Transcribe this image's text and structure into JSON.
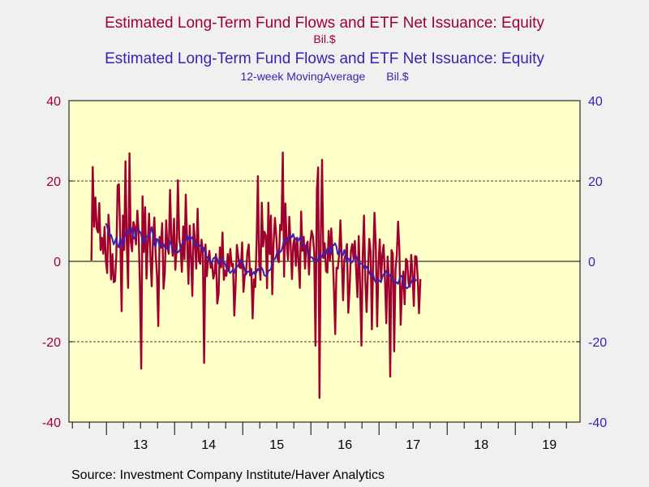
{
  "chart_data": {
    "type": "line",
    "titles": [
      {
        "text": "Estimated Long-Term Fund Flows and ETF Net Issuance: Equity",
        "color": "#a00030"
      },
      {
        "text": "Bil.$",
        "color": "#a00030"
      },
      {
        "text": "Estimated Long-Term Fund Flows and ETF Net Issuance: Equity",
        "color": "#3a1fb0"
      },
      {
        "text": "12-week MovingAverage",
        "color": "#3a1fb0"
      },
      {
        "text": "Bil.$",
        "color": "#3a1fb0"
      }
    ],
    "ylim": [
      -40,
      40
    ],
    "yticks_left": [
      "40",
      "20",
      "0",
      "-20",
      "-40"
    ],
    "yticks_right": [
      "40",
      "20",
      "0",
      "-20",
      "-40"
    ],
    "ytick_values": [
      40,
      20,
      0,
      -20,
      -40
    ],
    "xlim": [
      2012.45,
      2019.95
    ],
    "xtick_labels": [
      "13",
      "14",
      "15",
      "16",
      "17",
      "18",
      "19"
    ],
    "xtick_label_positions": [
      2013.5,
      2014.5,
      2015.5,
      2016.5,
      2017.5,
      2018.5,
      2019.5
    ],
    "year_boundaries": [
      2013,
      2014,
      2015,
      2016,
      2017,
      2018,
      2019
    ],
    "grid": "dashed horizontal at ±20",
    "background": "#ffffc8",
    "series": [
      {
        "name": "Estimated Long-Term Fund Flows and ETF Net Issuance: Equity",
        "color": "#a00030",
        "x_start": 2012.78,
        "x_step": 0.01923,
        "values": [
          0.2,
          23.5,
          8.6,
          15.9,
          8.2,
          7.2,
          14.5,
          2.8,
          5.9,
          1.9,
          8.6,
          0.1,
          -2.9,
          11.6,
          6.3,
          -4.5,
          1.8,
          -5.2,
          -4.9,
          1.6,
          18.9,
          19.2,
          5.3,
          -12.4,
          11.4,
          2.8,
          24.9,
          4.6,
          -6.6,
          26.9,
          4.9,
          2.5,
          9.8,
          8.6,
          4.2,
          12.6,
          7.4,
          -6.4,
          -26.7,
          16.2,
          2.3,
          13.5,
          -4.3,
          4.7,
          11.9,
          1.2,
          -6.2,
          5.9,
          10.9,
          1.8,
          -3.4,
          -16.1,
          6.1,
          3.4,
          9.5,
          -6.8,
          -2.9,
          10.2,
          3.5,
          1.9,
          17.8,
          5.4,
          1.4,
          10.6,
          -2.1,
          3.1,
          20.2,
          5.8,
          3.2,
          -2.6,
          8.7,
          0.5,
          16.6,
          5.3,
          -5.6,
          8.9,
          0.9,
          -8.6,
          9.3,
          5.1,
          -1.8,
          13.1,
          0.2,
          -0.6,
          5.4,
          2.7,
          -25.3,
          4.2,
          -3.7,
          0.2,
          2.6,
          -1.6,
          -0.1,
          -4.3,
          -2.8,
          1.8,
          -10.5,
          -8.3,
          3.5,
          -1.5,
          7.2,
          -4.6,
          -2.3,
          -3.6,
          1.8,
          -2.3,
          3.1,
          -1.2,
          -0.6,
          -13.5,
          -6.2,
          4.1,
          1.4,
          -1.5,
          -1.7,
          4.7,
          -7.6,
          -3.5,
          -2.6,
          2.1,
          4.2,
          -3.5,
          -1.9,
          -14.2,
          -4.5,
          -6.4,
          4.6,
          21.2,
          -0.7,
          -4.6,
          14.6,
          3.7,
          7.4,
          6.5,
          -6.7,
          14.6,
          1.8,
          11.4,
          -8.2,
          4.5,
          10.8,
          6.5,
          0.7,
          -0.2,
          9.1,
          7.8,
          27.1,
          -3.8,
          14.4,
          4.2,
          0.4,
          11.1,
          4.5,
          -4.4,
          4.2,
          5.8,
          -1.1,
          5.9,
          0.3,
          -6.6,
          12.4,
          2.6,
          6.1,
          -1.8,
          3.9,
          4.9,
          -3.3,
          4.6,
          7.6,
          6.2,
          2.3,
          -21.0,
          17.8,
          23.4,
          -34.0,
          6.0,
          25.3,
          0.8,
          4.5,
          -2.4,
          -2.8,
          7.6,
          0.3,
          8.2,
          2.7,
          -6.8,
          -18.1,
          -1.6,
          -1.8,
          1.6,
          10.2,
          1.3,
          -9.7,
          0.5,
          1.8,
          4.3,
          -12.8,
          -6.9,
          2.6,
          4.3,
          0.8,
          5.1,
          -2.1,
          -8.9,
          6.3,
          -6.2,
          -21.0,
          1.1,
          11.4,
          -4.7,
          -12.6,
          -2.4,
          5.6,
          2.5,
          -16.9,
          0.1,
          12.1,
          4.2,
          -16.2,
          -1.1,
          5.5,
          -4.4,
          1.6,
          4.1,
          -4.8,
          -15.4,
          1.2,
          -4.4,
          -28.7,
          2.8,
          1.9,
          -22.4,
          -2.1,
          1.6,
          9.9,
          3.2,
          -15.8,
          -6.2,
          -2.5,
          -10.7,
          0.6,
          0.1,
          -5.5,
          -6.3,
          1.6,
          -3.1,
          -11.1,
          1.3,
          1.2,
          -4.1,
          -12.9,
          -4.4
        ]
      },
      {
        "name": "12-week MovingAverage",
        "color": "#3a1fb0",
        "x_start": 2012.99,
        "x_step": 0.01923,
        "values": [
          9.5,
          8.7,
          7.4,
          6.3,
          6.6,
          5.6,
          4.2,
          4.9,
          5.8,
          3.8,
          3.5,
          5.8,
          4.9,
          3.8,
          5.7,
          6.6,
          7.6,
          7.2,
          7.3,
          8.6,
          7.7,
          5.9,
          5.6,
          7.5,
          8.2,
          7.7,
          7.4,
          6.8,
          4.9,
          4.6,
          5.6,
          6.2,
          6.1,
          6.2,
          7.2,
          8.5,
          6.8,
          4.3,
          3.6,
          5.6,
          5.3,
          3.9,
          3.5,
          4.2,
          4.3,
          3.6,
          3.5,
          3.1,
          3.0,
          5.0,
          4.4,
          3.4,
          2.6,
          2.5,
          2.6,
          2.2,
          2.6,
          3.1,
          4.1,
          4.8,
          5.1,
          5.3,
          6.5,
          5.5,
          6.3,
          5.6,
          6.0,
          5.1,
          4.3,
          4.6,
          3.7,
          3.7,
          4.0,
          3.4,
          2.9,
          3.4,
          2.0,
          1.1,
          0.9,
          0.6,
          -0.3,
          -0.4,
          0.7,
          0.9,
          1.3,
          0.6,
          -0.6,
          0.0,
          0.6,
          0.6,
          -0.2,
          -0.5,
          -1.6,
          -2.2,
          -2.5,
          -2.9,
          -2.5,
          -2.2,
          -2.9,
          -1.8,
          -1.4,
          -1.1,
          -0.3,
          0.4,
          0.2,
          -0.8,
          -2.0,
          -3.3,
          -2.6,
          -2.5,
          -2.7,
          -2.9,
          -3.2,
          -2.6,
          -3.3,
          -2.7,
          -1.9,
          -2.3,
          -2.1,
          -1.6,
          -2.3,
          -3.5,
          -3.6,
          -3.7,
          -2.4,
          -2.2,
          -2.0,
          -0.4,
          0.4,
          0.5,
          1.4,
          2.6,
          2.0,
          2.3,
          2.6,
          3.7,
          5.2,
          5.4,
          4.9,
          5.7,
          6.4,
          6.4,
          6.0,
          6.8,
          5.7,
          5.7,
          5.2,
          5.2,
          5.8,
          6.3,
          4.0,
          4.1,
          4.0,
          3.2,
          3.0,
          1.5,
          1.0,
          1.1,
          0.7,
          0.0,
          0.0,
          0.5,
          0.3,
          1.7,
          1.1,
          1.1,
          2.1,
          2.4,
          1.8,
          3.1,
          2.8,
          3.4,
          1.7,
          3.9,
          4.0,
          4.5,
          3.7,
          1.8,
          2.4,
          2.8,
          1.8,
          1.5,
          2.8,
          1.6,
          -0.3,
          0.7,
          0.5,
          -0.3,
          -0.3,
          0.4,
          0.9,
          1.3,
          0.6,
          -0.3,
          -0.6,
          -0.5,
          -0.8,
          -1.5,
          -1.8,
          -1.3,
          -1.9,
          -2.6,
          -3.4,
          -3.8,
          -3.2,
          -4.5,
          -5.2,
          -5.0,
          -4.6,
          -4.8,
          -5.2,
          -4.0,
          -3.2,
          -3.1,
          -2.4,
          -2.9,
          -3.5,
          -3.4,
          -4.2,
          -4.4,
          -5.1,
          -5.5,
          -5.2,
          -5.6,
          -4.6,
          -3.7,
          -3.6,
          -4.6,
          -5.8,
          -6.5,
          -6.7,
          -6.3,
          -5.8,
          -5.3,
          -4.6,
          -4.1,
          -4.4,
          -4.9
        ]
      }
    ]
  },
  "source": "Source:  Investment Company Institute/Haver Analytics"
}
